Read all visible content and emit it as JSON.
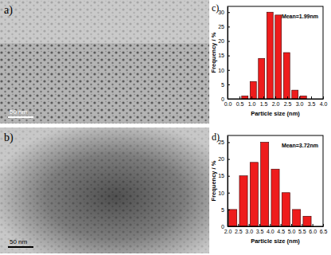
{
  "images": [
    {
      "label": "a)",
      "scale_bar": "50 nm"
    },
    {
      "label": "b)",
      "scale_bar": "50 nm"
    }
  ],
  "chart_data": [
    {
      "type": "histogram",
      "title": "c)",
      "x_label": "Particle size (nm)",
      "y_label": "Frequency / %",
      "annotations": [
        "Mean=1.99nm"
      ],
      "bins": [
        0.55,
        0.9,
        1.25,
        1.6,
        1.95,
        2.3,
        2.65,
        3.0,
        3.35
      ],
      "values": [
        1,
        6,
        14,
        30,
        29,
        16,
        3,
        1
      ],
      "color": "#ee1c1c",
      "xlim": [
        0,
        4
      ],
      "ylim": [
        0,
        32
      ],
      "xticks": [
        {
          "value": 0,
          "label": "0.0"
        },
        {
          "value": 0.5,
          "label": "0.5"
        },
        {
          "value": 1,
          "label": "1.0"
        },
        {
          "value": 1.5,
          "label": "1.5"
        },
        {
          "value": 2,
          "label": "2.0"
        },
        {
          "value": 2.5,
          "label": "2.5"
        },
        {
          "value": 3,
          "label": "3.0"
        },
        {
          "value": 3.5,
          "label": "3.5"
        },
        {
          "value": 4,
          "label": "4.0"
        }
      ],
      "yticks": [
        0,
        5,
        10,
        15,
        20,
        25,
        30
      ]
    },
    {
      "type": "histogram",
      "title": "d)",
      "x_label": "Particle size (nm)",
      "y_label": "Frequency / %",
      "annotations": [
        "Mean=3.72nm"
      ],
      "bins": [
        2.0,
        2.5,
        3.0,
        3.5,
        4.0,
        4.5,
        5.0,
        5.5,
        6.0
      ],
      "values": [
        5,
        15,
        19,
        25,
        17,
        10,
        5,
        3
      ],
      "color": "#ee1c1c",
      "xlim": [
        2,
        6.5
      ],
      "ylim": [
        0,
        27
      ],
      "xticks": [
        {
          "value": 2,
          "label": "2.0"
        },
        {
          "value": 2.5,
          "label": "2.5"
        },
        {
          "value": 3,
          "label": "3.0"
        },
        {
          "value": 3.5,
          "label": "3.5"
        },
        {
          "value": 4,
          "label": "4.0"
        },
        {
          "value": 4.5,
          "label": "4.5"
        },
        {
          "value": 5,
          "label": "5.0"
        },
        {
          "value": 5.5,
          "label": "5.5"
        },
        {
          "value": 6,
          "label": "6.0"
        },
        {
          "value": 6.5,
          "label": "6.5"
        }
      ],
      "yticks": [
        0,
        5,
        10,
        15,
        20,
        25
      ]
    }
  ]
}
